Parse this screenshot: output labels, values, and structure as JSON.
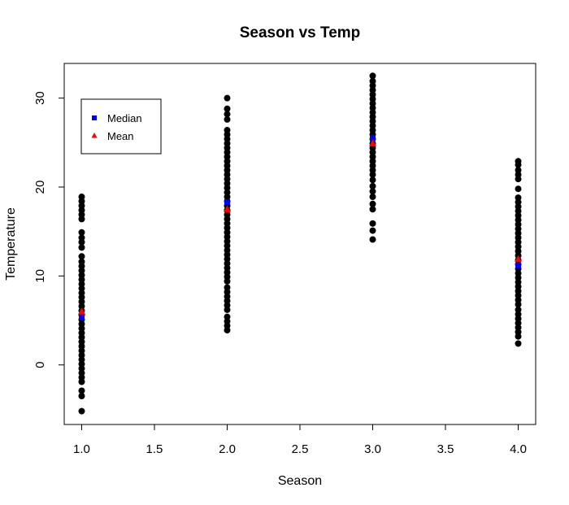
{
  "chart_data": {
    "type": "scatter",
    "title": "Season vs Temp",
    "xlabel": "Season",
    "ylabel": "Temperature",
    "xlim": [
      0.88,
      4.12
    ],
    "ylim": [
      -6.7,
      33.9
    ],
    "xticks": [
      1.0,
      1.5,
      2.0,
      2.5,
      3.0,
      3.5,
      4.0
    ],
    "xtick_labels": [
      "1.0",
      "1.5",
      "2.0",
      "2.5",
      "3.0",
      "3.5",
      "4.0"
    ],
    "yticks": [
      0,
      10,
      20,
      30
    ],
    "ytick_labels": [
      "0",
      "10",
      "20",
      "30"
    ],
    "grid": false,
    "legend": {
      "placement": "top-left",
      "entries": [
        {
          "label": "Median",
          "color": "#0000ff",
          "marker": "square"
        },
        {
          "label": "Mean",
          "color": "#ff0000",
          "marker": "triangle"
        }
      ]
    },
    "colors": {
      "points": "#000000",
      "median": "#0000ff",
      "mean": "#ff0000"
    },
    "series": [
      {
        "name": "Temperature",
        "points": [
          {
            "x": 1,
            "y": -5.2
          },
          {
            "x": 1,
            "y": -3.5
          },
          {
            "x": 1,
            "y": -2.9
          },
          {
            "x": 1,
            "y": -1.9
          },
          {
            "x": 1,
            "y": -1.4
          },
          {
            "x": 1,
            "y": -0.9
          },
          {
            "x": 1,
            "y": -0.4
          },
          {
            "x": 1,
            "y": 0.1
          },
          {
            "x": 1,
            "y": 0.6
          },
          {
            "x": 1,
            "y": 1.1
          },
          {
            "x": 1,
            "y": 1.6
          },
          {
            "x": 1,
            "y": 2.1
          },
          {
            "x": 1,
            "y": 2.6
          },
          {
            "x": 1,
            "y": 3.1
          },
          {
            "x": 1,
            "y": 3.6
          },
          {
            "x": 1,
            "y": 4.1
          },
          {
            "x": 1,
            "y": 4.6
          },
          {
            "x": 1,
            "y": 5.1
          },
          {
            "x": 1,
            "y": 5.6
          },
          {
            "x": 1,
            "y": 6.1
          },
          {
            "x": 1,
            "y": 6.6
          },
          {
            "x": 1,
            "y": 7.1
          },
          {
            "x": 1,
            "y": 7.6
          },
          {
            "x": 1,
            "y": 8.1
          },
          {
            "x": 1,
            "y": 8.6
          },
          {
            "x": 1,
            "y": 9.1
          },
          {
            "x": 1,
            "y": 9.6
          },
          {
            "x": 1,
            "y": 10.1
          },
          {
            "x": 1,
            "y": 10.6
          },
          {
            "x": 1,
            "y": 11.1
          },
          {
            "x": 1,
            "y": 11.6
          },
          {
            "x": 1,
            "y": 12.2
          },
          {
            "x": 1,
            "y": 13.2
          },
          {
            "x": 1,
            "y": 13.8
          },
          {
            "x": 1,
            "y": 14.3
          },
          {
            "x": 1,
            "y": 14.9
          },
          {
            "x": 1,
            "y": 16.4
          },
          {
            "x": 1,
            "y": 16.9
          },
          {
            "x": 1,
            "y": 17.4
          },
          {
            "x": 1,
            "y": 17.9
          },
          {
            "x": 1,
            "y": 18.4
          },
          {
            "x": 1,
            "y": 18.9
          },
          {
            "x": 2,
            "y": 3.9
          },
          {
            "x": 2,
            "y": 4.4
          },
          {
            "x": 2,
            "y": 4.9
          },
          {
            "x": 2,
            "y": 5.4
          },
          {
            "x": 2,
            "y": 6.2
          },
          {
            "x": 2,
            "y": 6.7
          },
          {
            "x": 2,
            "y": 7.2
          },
          {
            "x": 2,
            "y": 7.7
          },
          {
            "x": 2,
            "y": 8.2
          },
          {
            "x": 2,
            "y": 8.7
          },
          {
            "x": 2,
            "y": 9.4
          },
          {
            "x": 2,
            "y": 9.9
          },
          {
            "x": 2,
            "y": 10.4
          },
          {
            "x": 2,
            "y": 10.9
          },
          {
            "x": 2,
            "y": 11.4
          },
          {
            "x": 2,
            "y": 11.9
          },
          {
            "x": 2,
            "y": 12.4
          },
          {
            "x": 2,
            "y": 12.9
          },
          {
            "x": 2,
            "y": 13.4
          },
          {
            "x": 2,
            "y": 13.9
          },
          {
            "x": 2,
            "y": 14.4
          },
          {
            "x": 2,
            "y": 14.9
          },
          {
            "x": 2,
            "y": 15.4
          },
          {
            "x": 2,
            "y": 15.9
          },
          {
            "x": 2,
            "y": 16.4
          },
          {
            "x": 2,
            "y": 16.9
          },
          {
            "x": 2,
            "y": 17.4
          },
          {
            "x": 2,
            "y": 17.9
          },
          {
            "x": 2,
            "y": 18.4
          },
          {
            "x": 2,
            "y": 18.9
          },
          {
            "x": 2,
            "y": 19.4
          },
          {
            "x": 2,
            "y": 19.9
          },
          {
            "x": 2,
            "y": 20.4
          },
          {
            "x": 2,
            "y": 20.9
          },
          {
            "x": 2,
            "y": 21.4
          },
          {
            "x": 2,
            "y": 21.9
          },
          {
            "x": 2,
            "y": 22.4
          },
          {
            "x": 2,
            "y": 22.9
          },
          {
            "x": 2,
            "y": 23.4
          },
          {
            "x": 2,
            "y": 23.9
          },
          {
            "x": 2,
            "y": 24.4
          },
          {
            "x": 2,
            "y": 24.9
          },
          {
            "x": 2,
            "y": 25.4
          },
          {
            "x": 2,
            "y": 25.9
          },
          {
            "x": 2,
            "y": 26.4
          },
          {
            "x": 2,
            "y": 27.6
          },
          {
            "x": 2,
            "y": 28.2
          },
          {
            "x": 2,
            "y": 28.8
          },
          {
            "x": 2,
            "y": 30.0
          },
          {
            "x": 3,
            "y": 14.1
          },
          {
            "x": 3,
            "y": 15.1
          },
          {
            "x": 3,
            "y": 15.9
          },
          {
            "x": 3,
            "y": 17.5
          },
          {
            "x": 3,
            "y": 18.1
          },
          {
            "x": 3,
            "y": 18.9
          },
          {
            "x": 3,
            "y": 19.5
          },
          {
            "x": 3,
            "y": 20.1
          },
          {
            "x": 3,
            "y": 20.8
          },
          {
            "x": 3,
            "y": 21.4
          },
          {
            "x": 3,
            "y": 21.9
          },
          {
            "x": 3,
            "y": 22.4
          },
          {
            "x": 3,
            "y": 22.9
          },
          {
            "x": 3,
            "y": 23.4
          },
          {
            "x": 3,
            "y": 23.9
          },
          {
            "x": 3,
            "y": 24.4
          },
          {
            "x": 3,
            "y": 24.9
          },
          {
            "x": 3,
            "y": 25.4
          },
          {
            "x": 3,
            "y": 25.9
          },
          {
            "x": 3,
            "y": 26.4
          },
          {
            "x": 3,
            "y": 26.9
          },
          {
            "x": 3,
            "y": 27.4
          },
          {
            "x": 3,
            "y": 27.9
          },
          {
            "x": 3,
            "y": 28.4
          },
          {
            "x": 3,
            "y": 28.9
          },
          {
            "x": 3,
            "y": 29.4
          },
          {
            "x": 3,
            "y": 29.9
          },
          {
            "x": 3,
            "y": 30.4
          },
          {
            "x": 3,
            "y": 30.9
          },
          {
            "x": 3,
            "y": 31.4
          },
          {
            "x": 3,
            "y": 31.9
          },
          {
            "x": 3,
            "y": 32.5
          },
          {
            "x": 4,
            "y": 2.4
          },
          {
            "x": 4,
            "y": 3.2
          },
          {
            "x": 4,
            "y": 3.7
          },
          {
            "x": 4,
            "y": 4.2
          },
          {
            "x": 4,
            "y": 4.7
          },
          {
            "x": 4,
            "y": 5.2
          },
          {
            "x": 4,
            "y": 5.7
          },
          {
            "x": 4,
            "y": 6.2
          },
          {
            "x": 4,
            "y": 6.8
          },
          {
            "x": 4,
            "y": 7.3
          },
          {
            "x": 4,
            "y": 7.8
          },
          {
            "x": 4,
            "y": 8.3
          },
          {
            "x": 4,
            "y": 8.8
          },
          {
            "x": 4,
            "y": 9.3
          },
          {
            "x": 4,
            "y": 9.8
          },
          {
            "x": 4,
            "y": 10.3
          },
          {
            "x": 4,
            "y": 10.8
          },
          {
            "x": 4,
            "y": 11.3
          },
          {
            "x": 4,
            "y": 11.8
          },
          {
            "x": 4,
            "y": 12.3
          },
          {
            "x": 4,
            "y": 12.8
          },
          {
            "x": 4,
            "y": 13.3
          },
          {
            "x": 4,
            "y": 13.8
          },
          {
            "x": 4,
            "y": 14.3
          },
          {
            "x": 4,
            "y": 14.8
          },
          {
            "x": 4,
            "y": 15.3
          },
          {
            "x": 4,
            "y": 15.8
          },
          {
            "x": 4,
            "y": 16.3
          },
          {
            "x": 4,
            "y": 16.8
          },
          {
            "x": 4,
            "y": 17.3
          },
          {
            "x": 4,
            "y": 17.8
          },
          {
            "x": 4,
            "y": 18.3
          },
          {
            "x": 4,
            "y": 18.8
          },
          {
            "x": 4,
            "y": 19.8
          },
          {
            "x": 4,
            "y": 20.9
          },
          {
            "x": 4,
            "y": 21.4
          },
          {
            "x": 4,
            "y": 21.9
          },
          {
            "x": 4,
            "y": 22.5
          },
          {
            "x": 4,
            "y": 22.9
          }
        ]
      },
      {
        "name": "Median",
        "points": [
          {
            "x": 1,
            "y": 5.4
          },
          {
            "x": 2,
            "y": 18.3
          },
          {
            "x": 3,
            "y": 25.5
          },
          {
            "x": 4,
            "y": 11.2
          }
        ]
      },
      {
        "name": "Mean",
        "points": [
          {
            "x": 1,
            "y": 6.0
          },
          {
            "x": 2,
            "y": 17.5
          },
          {
            "x": 3,
            "y": 24.9
          },
          {
            "x": 4,
            "y": 11.9
          }
        ]
      }
    ]
  }
}
